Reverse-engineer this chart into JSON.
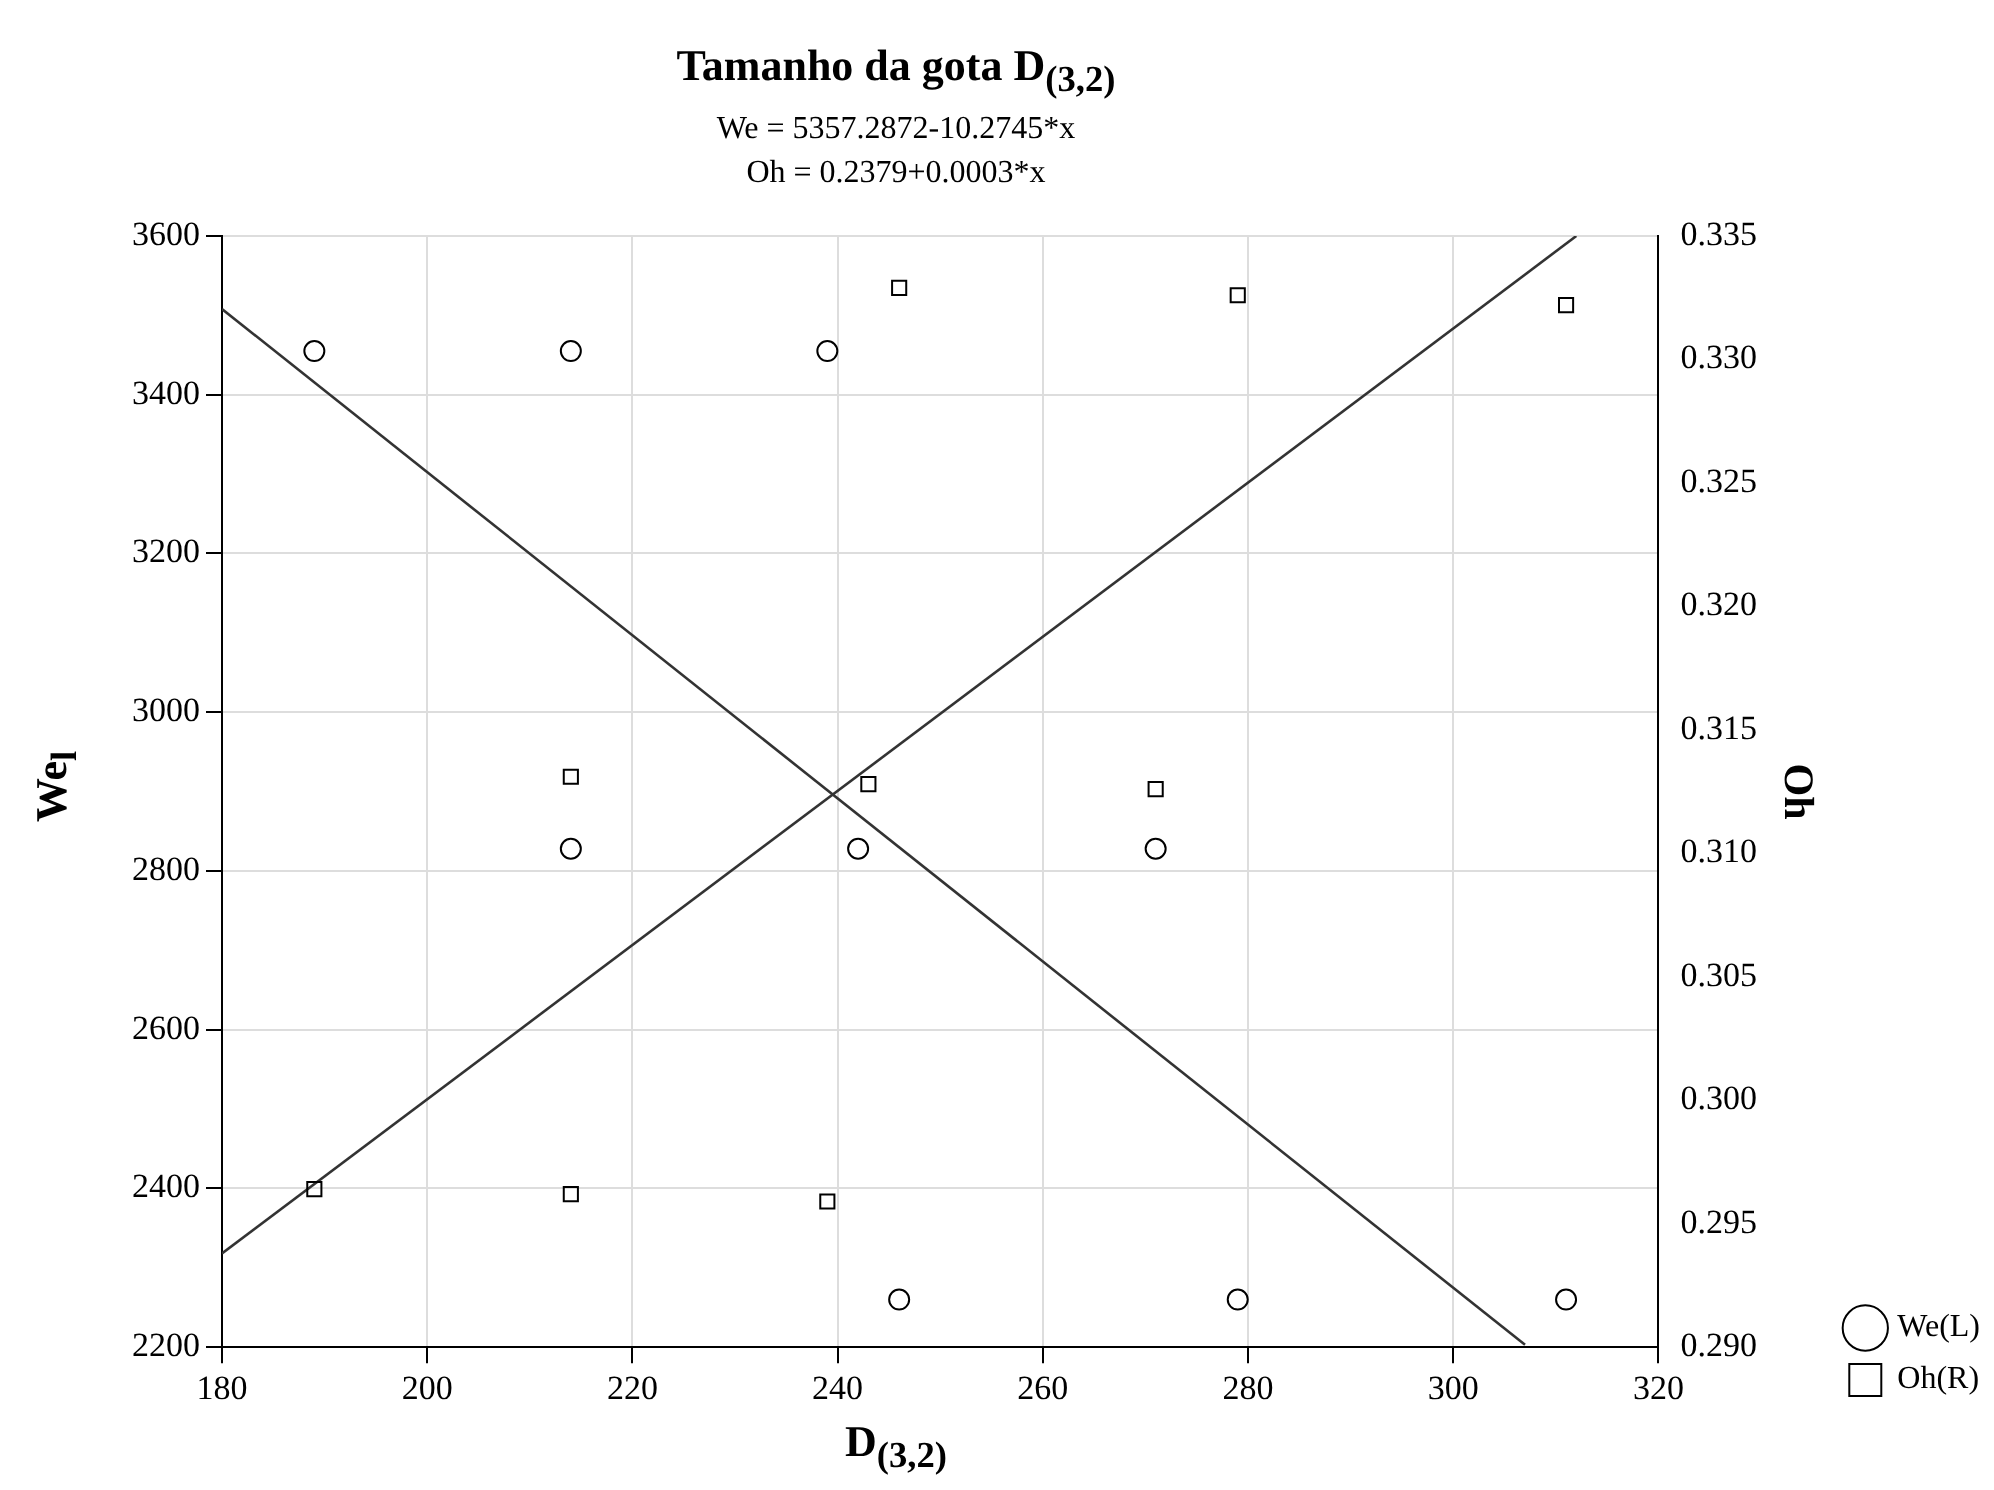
{
  "chart_data": {
    "type": "scatter",
    "title": "Tamanho da gota D$_{(3,2)}$",
    "annotations": [
      "We = 5357.2872-10.2745*x",
      "Oh = 0.2379+0.0003*x"
    ],
    "xlabel": "D$_{(3,2)}$",
    "ylabel": "We$_{l}$",
    "y2label": "Oh",
    "xlim": [
      180,
      320
    ],
    "xticks": [
      180,
      200,
      220,
      240,
      260,
      280,
      300,
      320
    ],
    "ylim": [
      2200,
      3600
    ],
    "yticks": [
      2200,
      2400,
      2600,
      2800,
      3000,
      3200,
      3400,
      3600
    ],
    "y2lim": [
      0.29,
      0.335
    ],
    "y2ticks": [
      {
        "value": 0.29,
        "label": "0.290"
      },
      {
        "value": 0.295,
        "label": "0.295"
      },
      {
        "value": 0.3,
        "label": "0.300"
      },
      {
        "value": 0.305,
        "label": "0.305"
      },
      {
        "value": 0.31,
        "label": "0.310"
      },
      {
        "value": 0.315,
        "label": "0.315"
      },
      {
        "value": 0.32,
        "label": "0.320"
      },
      {
        "value": 0.325,
        "label": "0.325"
      },
      {
        "value": 0.33,
        "label": "0.330"
      },
      {
        "value": 0.335,
        "label": "0.335"
      }
    ],
    "grid": true,
    "legend": "bottom right",
    "series": [
      {
        "name": "We(L)",
        "color": "#000000",
        "marker": "circle",
        "x": [
          189,
          214,
          239,
          214,
          242,
          271,
          246,
          279,
          311
        ],
        "values": [
          3455,
          3455,
          3455,
          2828,
          2828,
          2828,
          2260,
          2260,
          2260
        ]
      },
      {
        "name": "Oh(R)",
        "color": "#000000",
        "marker": "square",
        "axis": "y2",
        "x": [
          189,
          214,
          239,
          214,
          243,
          271,
          246,
          279,
          311
        ],
        "values": [
          0.2964,
          0.2962,
          0.2959,
          0.3131,
          0.3128,
          0.3126,
          0.3329,
          0.3326,
          0.3322
        ]
      },
      {
        "type": "line",
        "color": "#333333",
        "marker": "none",
        "line_style": "solid",
        "x": [
          180,
          307
        ],
        "values": [
          3508,
          2203
        ]
      },
      {
        "type": "line",
        "color": "#333333",
        "marker": "none",
        "line_style": "solid",
        "axis": "y2",
        "x": [
          180,
          312
        ],
        "values": [
          0.2938,
          0.335
        ]
      }
    ]
  }
}
